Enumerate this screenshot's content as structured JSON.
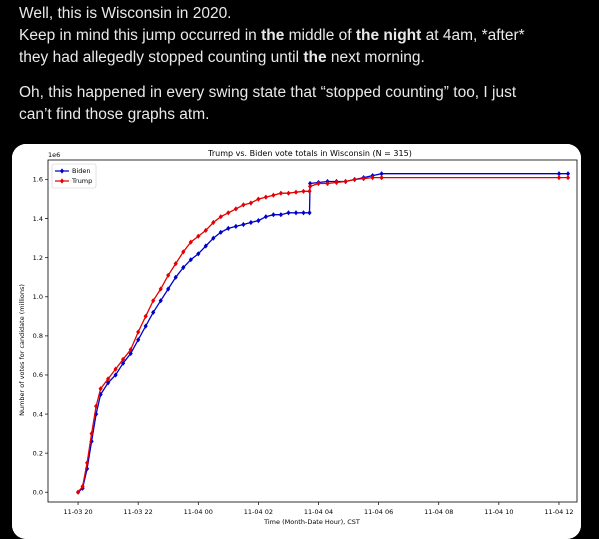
{
  "post": {
    "line1": "Well, this is Wisconsin in 2020.",
    "line2_a": "Keep in mind this jump occurred in ",
    "line2_b": "the",
    "line2_c": " middle of ",
    "line2_d": "the night",
    "line2_e": " at 4am, *after*",
    "line3_a": "they had allegedly stopped counting until ",
    "line3_b": "the",
    "line3_c": " next morning.",
    "para2_line1": "Oh, this happened in every swing state that “stopped counting” too, I just",
    "para2_line2": "can’t find those graphs atm."
  },
  "chart_data": {
    "type": "line",
    "title": "Trump vs. Biden vote totals in Wisconsin (N = 315)",
    "xlabel": "Time (Month-Date Hour), CST",
    "ylabel": "Number of votes for candidate (millions)",
    "y_offset_label": "1e6",
    "x_ticks": [
      "11-03 20",
      "11-03 22",
      "11-04 00",
      "11-04 02",
      "11-04 04",
      "11-04 06",
      "11-04 08",
      "11-04 10",
      "11-04 12"
    ],
    "x_tick_hours": [
      20,
      22,
      24,
      26,
      28,
      30,
      32,
      34,
      36
    ],
    "y_ticks": [
      "0.0",
      "0.2",
      "0.4",
      "0.6",
      "0.8",
      "1.0",
      "1.2",
      "1.4",
      "1.6"
    ],
    "y_tick_values": [
      0,
      0.2,
      0.4,
      0.6,
      0.8,
      1.0,
      1.2,
      1.4,
      1.6
    ],
    "xlim": [
      19.0,
      36.6
    ],
    "ylim": [
      -0.05,
      1.7
    ],
    "legend_position": "upper left",
    "series": [
      {
        "name": "Biden",
        "color": "#0000cc",
        "points": [
          [
            20.0,
            0.0
          ],
          [
            20.15,
            0.02
          ],
          [
            20.3,
            0.12
          ],
          [
            20.45,
            0.26
          ],
          [
            20.6,
            0.4
          ],
          [
            20.75,
            0.5
          ],
          [
            21.0,
            0.56
          ],
          [
            21.25,
            0.6
          ],
          [
            21.5,
            0.66
          ],
          [
            21.75,
            0.71
          ],
          [
            22.0,
            0.78
          ],
          [
            22.25,
            0.85
          ],
          [
            22.5,
            0.92
          ],
          [
            22.75,
            0.98
          ],
          [
            23.0,
            1.04
          ],
          [
            23.25,
            1.1
          ],
          [
            23.5,
            1.15
          ],
          [
            23.75,
            1.19
          ],
          [
            24.0,
            1.22
          ],
          [
            24.25,
            1.26
          ],
          [
            24.5,
            1.3
          ],
          [
            24.75,
            1.33
          ],
          [
            25.0,
            1.35
          ],
          [
            25.25,
            1.36
          ],
          [
            25.5,
            1.37
          ],
          [
            25.75,
            1.38
          ],
          [
            26.0,
            1.39
          ],
          [
            26.25,
            1.41
          ],
          [
            26.5,
            1.42
          ],
          [
            26.75,
            1.42
          ],
          [
            27.0,
            1.43
          ],
          [
            27.25,
            1.43
          ],
          [
            27.5,
            1.43
          ],
          [
            27.7,
            1.43
          ],
          [
            27.72,
            1.58
          ],
          [
            28.0,
            1.585
          ],
          [
            28.3,
            1.59
          ],
          [
            28.6,
            1.59
          ],
          [
            28.9,
            1.59
          ],
          [
            29.2,
            1.6
          ],
          [
            29.5,
            1.61
          ],
          [
            29.8,
            1.62
          ],
          [
            30.1,
            1.63
          ],
          [
            36.0,
            1.63
          ],
          [
            36.3,
            1.63
          ]
        ]
      },
      {
        "name": "Trump",
        "color": "#e50000",
        "points": [
          [
            20.0,
            0.0
          ],
          [
            20.15,
            0.03
          ],
          [
            20.3,
            0.15
          ],
          [
            20.45,
            0.3
          ],
          [
            20.6,
            0.44
          ],
          [
            20.75,
            0.53
          ],
          [
            21.0,
            0.58
          ],
          [
            21.25,
            0.63
          ],
          [
            21.5,
            0.68
          ],
          [
            21.75,
            0.73
          ],
          [
            22.0,
            0.82
          ],
          [
            22.25,
            0.9
          ],
          [
            22.5,
            0.98
          ],
          [
            22.75,
            1.04
          ],
          [
            23.0,
            1.11
          ],
          [
            23.25,
            1.17
          ],
          [
            23.5,
            1.23
          ],
          [
            23.75,
            1.28
          ],
          [
            24.0,
            1.31
          ],
          [
            24.25,
            1.34
          ],
          [
            24.5,
            1.38
          ],
          [
            24.75,
            1.41
          ],
          [
            25.0,
            1.43
          ],
          [
            25.25,
            1.45
          ],
          [
            25.5,
            1.47
          ],
          [
            25.75,
            1.48
          ],
          [
            26.0,
            1.5
          ],
          [
            26.25,
            1.51
          ],
          [
            26.5,
            1.52
          ],
          [
            26.75,
            1.53
          ],
          [
            27.0,
            1.53
          ],
          [
            27.25,
            1.535
          ],
          [
            27.5,
            1.54
          ],
          [
            27.7,
            1.54
          ],
          [
            27.72,
            1.565
          ],
          [
            28.0,
            1.58
          ],
          [
            28.3,
            1.58
          ],
          [
            28.6,
            1.585
          ],
          [
            28.9,
            1.59
          ],
          [
            29.2,
            1.6
          ],
          [
            29.5,
            1.605
          ],
          [
            29.8,
            1.61
          ],
          [
            30.1,
            1.61
          ],
          [
            36.0,
            1.61
          ],
          [
            36.3,
            1.61
          ]
        ]
      }
    ]
  }
}
